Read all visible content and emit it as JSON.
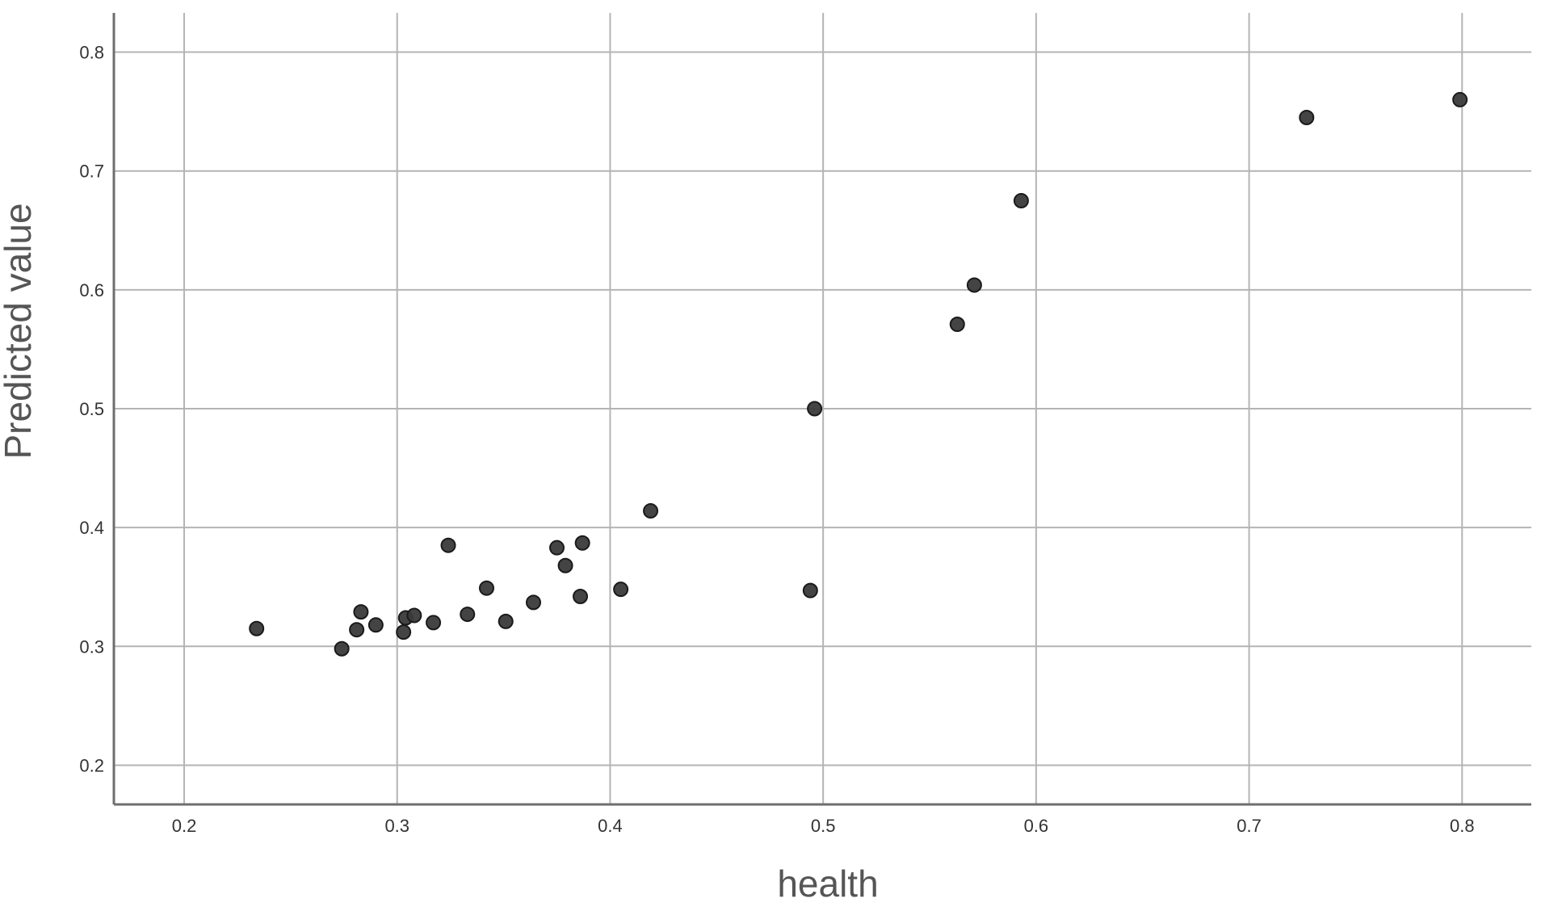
{
  "chart_data": {
    "type": "scatter",
    "title": "",
    "xlabel": "health",
    "ylabel": "Predicted value",
    "xlim": [
      0.167,
      0.8325
    ],
    "ylim": [
      0.167,
      0.833
    ],
    "xticks": [
      "0.2",
      "0.3",
      "0.4",
      "0.5",
      "0.6",
      "0.7",
      "0.8"
    ],
    "yticks": [
      "0.2",
      "0.3",
      "0.4",
      "0.5",
      "0.6",
      "0.7",
      "0.8"
    ],
    "xtick_values": [
      0.2,
      0.3,
      0.4,
      0.5,
      0.6,
      0.7,
      0.8
    ],
    "ytick_values": [
      0.2,
      0.3,
      0.4,
      0.5,
      0.6,
      0.7,
      0.8
    ],
    "grid": true,
    "point_color": "#3a3a3a",
    "points": [
      {
        "x": 0.234,
        "y": 0.315
      },
      {
        "x": 0.274,
        "y": 0.298
      },
      {
        "x": 0.281,
        "y": 0.314
      },
      {
        "x": 0.283,
        "y": 0.329
      },
      {
        "x": 0.29,
        "y": 0.318
      },
      {
        "x": 0.303,
        "y": 0.312
      },
      {
        "x": 0.304,
        "y": 0.324
      },
      {
        "x": 0.308,
        "y": 0.326
      },
      {
        "x": 0.317,
        "y": 0.32
      },
      {
        "x": 0.324,
        "y": 0.385
      },
      {
        "x": 0.333,
        "y": 0.327
      },
      {
        "x": 0.342,
        "y": 0.349
      },
      {
        "x": 0.351,
        "y": 0.321
      },
      {
        "x": 0.364,
        "y": 0.337
      },
      {
        "x": 0.375,
        "y": 0.383
      },
      {
        "x": 0.379,
        "y": 0.368
      },
      {
        "x": 0.386,
        "y": 0.342
      },
      {
        "x": 0.387,
        "y": 0.387
      },
      {
        "x": 0.405,
        "y": 0.348
      },
      {
        "x": 0.419,
        "y": 0.414
      },
      {
        "x": 0.494,
        "y": 0.347
      },
      {
        "x": 0.496,
        "y": 0.5
      },
      {
        "x": 0.563,
        "y": 0.571
      },
      {
        "x": 0.571,
        "y": 0.604
      },
      {
        "x": 0.593,
        "y": 0.675
      },
      {
        "x": 0.727,
        "y": 0.745
      },
      {
        "x": 0.799,
        "y": 0.76
      }
    ]
  }
}
